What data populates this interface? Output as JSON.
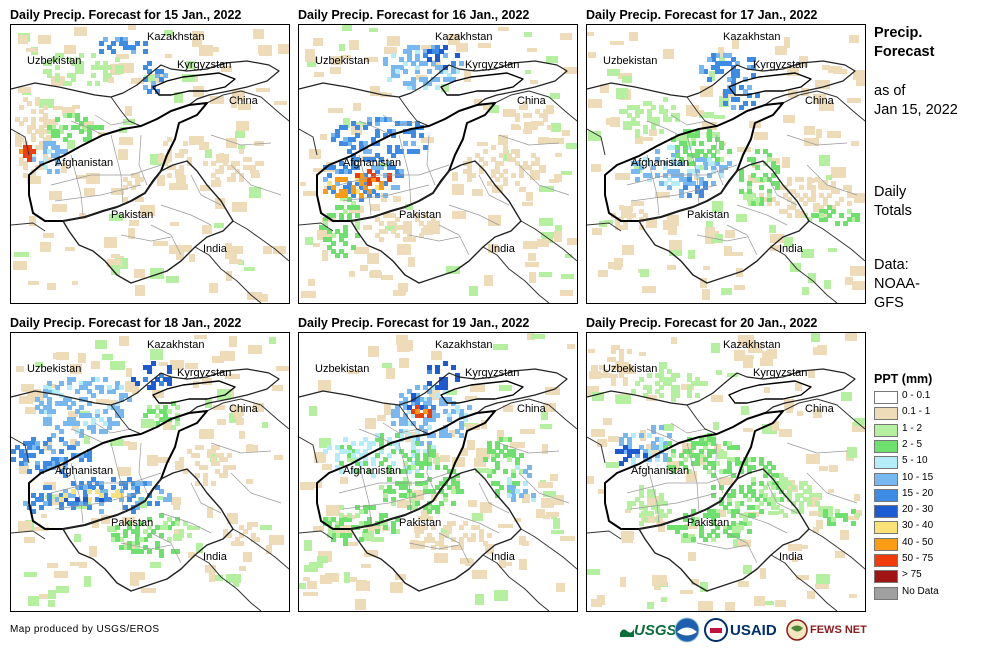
{
  "panels": [
    {
      "title": "Daily Precip. Forecast for 15 Jan., 2022",
      "intensity": 0
    },
    {
      "title": "Daily Precip. Forecast for 16 Jan., 2022",
      "intensity": 1
    },
    {
      "title": "Daily Precip. Forecast for 17 Jan., 2022",
      "intensity": 2
    },
    {
      "title": "Daily Precip. Forecast for 18 Jan., 2022",
      "intensity": 3
    },
    {
      "title": "Daily Precip. Forecast for 19 Jan., 2022",
      "intensity": 4
    },
    {
      "title": "Daily Precip. Forecast for 20 Jan., 2022",
      "intensity": 5
    }
  ],
  "map_labels": {
    "kazakhstan": "Kazakhstan",
    "uzbekistan": "Uzbekistan",
    "kyrgyzstan": "Kyrgyzstan",
    "china": "China",
    "afghanistan": "Afghanistan",
    "pakistan": "Pakistan",
    "india": "India"
  },
  "side": {
    "heading_line1": "Precip.",
    "heading_line2": "Forecast",
    "asof_line1": "as of",
    "asof_line2": "Jan 15, 2022",
    "totals_line1": "Daily",
    "totals_line2": "Totals",
    "data_line1": "Data:",
    "data_line2": "NOAA-",
    "data_line3": "GFS"
  },
  "legend": {
    "title": "PPT (mm)",
    "items": [
      {
        "label": "0 - 0.1",
        "color": "#ffffff"
      },
      {
        "label": "0.1 - 1",
        "color": "#eedcb8"
      },
      {
        "label": "1 - 2",
        "color": "#b4f0a0"
      },
      {
        "label": "2 - 5",
        "color": "#6ee06e"
      },
      {
        "label": "5 - 10",
        "color": "#b4ecf8"
      },
      {
        "label": "10 - 15",
        "color": "#78b8f0"
      },
      {
        "label": "15 - 20",
        "color": "#3c8ce6"
      },
      {
        "label": "20 - 30",
        "color": "#1c5ad2"
      },
      {
        "label": "30 - 40",
        "color": "#fae178"
      },
      {
        "label": "40 - 50",
        "color": "#fa9c14"
      },
      {
        "label": "50 - 75",
        "color": "#f03c0a"
      },
      {
        "label": "> 75",
        "color": "#a01414"
      },
      {
        "label": "No Data",
        "color": "#a0a0a0"
      }
    ]
  },
  "credit": "Map produced by USGS/EROS",
  "logos": {
    "usgs": "USGS",
    "usaid": "USAID",
    "fewsnet": "FEWS NET"
  }
}
